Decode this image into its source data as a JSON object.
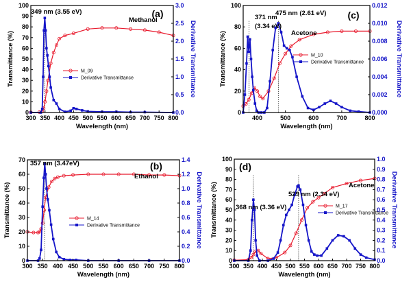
{
  "chart_data": [
    {
      "type": "line",
      "panel_label": "(a)",
      "solvent": "Methanol",
      "peak_annotation": "349 nm (3.55 eV)",
      "xlabel": "Wavelength (nm)",
      "ylabel_left": "Transmittance (%)",
      "ylabel_right": "Derivative Transmittance",
      "xlim": [
        300,
        800
      ],
      "ylim_left": [
        0,
        100
      ],
      "ylim_right": [
        0,
        3.0
      ],
      "xticks": [
        300,
        350,
        400,
        450,
        500,
        550,
        600,
        650,
        700,
        750,
        800
      ],
      "yticks_left": [
        0,
        10,
        20,
        30,
        40,
        50,
        60,
        70,
        80,
        90,
        100
      ],
      "yticks_right": [
        0.0,
        0.5,
        1.0,
        1.5,
        2.0,
        2.5,
        3.0
      ],
      "yticks_right_labels": [
        "0.0",
        "0.5",
        "1.0",
        "1.5",
        "2.0",
        "2.5",
        "3.0"
      ],
      "marker_lines": [
        349
      ],
      "legend_position": "middle-left",
      "series": [
        {
          "name": "M_09",
          "axis": "left",
          "marker": "circle",
          "color": "#e8192c",
          "x": [
            300,
            330,
            340,
            345,
            350,
            355,
            360,
            370,
            380,
            390,
            400,
            420,
            450,
            500,
            550,
            600,
            650,
            700,
            750,
            800
          ],
          "y": [
            0.2,
            0.3,
            1,
            4,
            10,
            20,
            30,
            46,
            56,
            63,
            69,
            72,
            74,
            78,
            79,
            79,
            78,
            77,
            75,
            72
          ]
        },
        {
          "name": "Derivative Transmittance",
          "axis": "right",
          "marker": "square",
          "color": "#1515c8",
          "x": [
            300,
            335,
            340,
            343,
            346,
            349,
            352,
            355,
            358,
            362,
            366,
            370,
            380,
            390,
            400,
            420,
            440,
            450,
            460,
            480,
            500,
            550,
            600,
            650,
            700,
            800
          ],
          "y": [
            0,
            0,
            0.1,
            1.0,
            2.3,
            2.65,
            2.3,
            1.8,
            1.6,
            1.3,
            1.0,
            0.7,
            0.35,
            0.25,
            0.1,
            0.02,
            0.05,
            0.12,
            0.1,
            0.06,
            0.03,
            0.02,
            0.02,
            0.01,
            0.01,
            0.0
          ]
        }
      ]
    },
    {
      "type": "line",
      "panel_label": "(c)",
      "solvent": "Acetone",
      "peak_annotations": [
        "371 nm\n(3.34 eV)",
        "475 nm (2.61 eV)"
      ],
      "xlabel": "Wavelength (nm)",
      "ylabel_left": "Transmittance (%)",
      "ylabel_right": "Derivative Transmittance",
      "xlim": [
        350,
        800
      ],
      "ylim_left": [
        0,
        100
      ],
      "ylim_right": [
        0,
        0.012
      ],
      "xticks": [
        400,
        500,
        600,
        700,
        800
      ],
      "yticks_left": [
        0,
        20,
        40,
        60,
        80,
        100
      ],
      "yticks_right": [
        0.0,
        0.002,
        0.004,
        0.006,
        0.008,
        0.01,
        0.012
      ],
      "yticks_right_labels": [
        "0.000",
        "0.002",
        "0.004",
        "0.006",
        "0.008",
        "0.010",
        "0.012"
      ],
      "marker_lines": [
        371,
        475
      ],
      "legend_position": "middle-right",
      "series": [
        {
          "name": "M_10",
          "axis": "left",
          "marker": "circle",
          "color": "#e8192c",
          "x": [
            350,
            360,
            370,
            380,
            390,
            400,
            410,
            420,
            440,
            460,
            480,
            500,
            520,
            550,
            600,
            650,
            700,
            750,
            800
          ],
          "y": [
            6,
            8,
            12,
            18,
            23,
            20,
            15,
            13,
            20,
            32,
            46,
            55,
            62,
            68,
            73,
            75,
            76,
            76,
            76
          ]
        },
        {
          "name": "Derivative Transmittance",
          "axis": "right",
          "marker": "square",
          "color": "#1515c8",
          "x": [
            350,
            356,
            362,
            366,
            370,
            374,
            378,
            382,
            386,
            392,
            398,
            405,
            415,
            425,
            435,
            445,
            455,
            465,
            475,
            485,
            495,
            505,
            515,
            525,
            540,
            560,
            580,
            600,
            620,
            640,
            660,
            680,
            700,
            730,
            760,
            800
          ],
          "y": [
            0,
            0.002,
            0.0055,
            0.0085,
            0.0068,
            0.0082,
            0.006,
            0.004,
            0.0025,
            0.001,
            0.0002,
            0,
            0,
            0,
            0.0005,
            0.0035,
            0.007,
            0.0095,
            0.01,
            0.009,
            0.0075,
            0.0072,
            0.007,
            0.0062,
            0.004,
            0.0018,
            0.0005,
            0.0003,
            0.0006,
            0.001,
            0.0013,
            0.001,
            0.0006,
            0.0002,
            0.0001,
            0
          ]
        }
      ]
    },
    {
      "type": "line",
      "panel_label": "(b)",
      "solvent": "Ethanol",
      "peak_annotation": "357 nm (3.47eV)",
      "xlabel": "Wavelength (nm)",
      "ylabel_left": "Transmittance (%)",
      "ylabel_right": "Derivative Transmittance",
      "xlim": [
        300,
        800
      ],
      "ylim_left": [
        0,
        70
      ],
      "ylim_right": [
        0,
        1.4
      ],
      "xticks": [
        300,
        350,
        400,
        450,
        500,
        550,
        600,
        650,
        700,
        750,
        800
      ],
      "yticks_left": [
        0,
        10,
        20,
        30,
        40,
        50,
        60,
        70
      ],
      "yticks_right": [
        0.0,
        0.2,
        0.4,
        0.6,
        0.8,
        1.0,
        1.2,
        1.4
      ],
      "yticks_right_labels": [
        "0.0",
        "0.2",
        "0.4",
        "0.6",
        "0.8",
        "1.0",
        "1.2",
        "1.4"
      ],
      "marker_lines": [
        357
      ],
      "legend_position": "bottom-center",
      "series": [
        {
          "name": "M_14",
          "axis": "left",
          "marker": "circle",
          "color": "#e8192c",
          "x": [
            300,
            320,
            335,
            340,
            345,
            350,
            355,
            360,
            370,
            380,
            390,
            400,
            420,
            450,
            500,
            550,
            600,
            650,
            700,
            750,
            800
          ],
          "y": [
            20,
            19.5,
            19.5,
            20,
            22,
            26,
            35,
            44,
            51,
            55,
            57,
            58,
            59,
            59.5,
            60,
            60,
            60,
            60,
            59.5,
            59.5,
            59
          ]
        },
        {
          "name": "Derivative Transmittance",
          "axis": "right",
          "marker": "square",
          "color": "#1515c8",
          "x": [
            300,
            335,
            340,
            345,
            350,
            354,
            357,
            360,
            363,
            367,
            372,
            378,
            385,
            395,
            405,
            420,
            440,
            460,
            500,
            600,
            700,
            800
          ],
          "y": [
            0,
            0,
            0.03,
            0.15,
            0.75,
            1.15,
            1.35,
            1.2,
            1.0,
            0.85,
            0.7,
            0.5,
            0.3,
            0.12,
            0.05,
            0.02,
            0.01,
            0.01,
            0,
            0,
            0,
            0
          ]
        }
      ]
    },
    {
      "type": "line",
      "panel_label": "(d)",
      "solvent": "Acetone",
      "peak_annotations": [
        "368 nm (3.36 eV)",
        "529 nm (2.34 eV)"
      ],
      "xlabel": "Wavelength (nm)",
      "ylabel_left": "Transmittance (%)",
      "ylabel_right": "Derivative Transmittance",
      "xlim": [
        300,
        800
      ],
      "ylim_left": [
        0,
        100
      ],
      "ylim_right": [
        0,
        1.0
      ],
      "xticks": [
        300,
        350,
        400,
        450,
        500,
        550,
        600,
        650,
        700,
        750,
        800
      ],
      "yticks_left": [
        0,
        10,
        20,
        30,
        40,
        50,
        60,
        70,
        80,
        90,
        100
      ],
      "yticks_right": [
        0.0,
        0.1,
        0.2,
        0.3,
        0.4,
        0.5,
        0.6,
        0.7,
        0.8,
        0.9,
        1.0
      ],
      "yticks_right_labels": [
        "0.0",
        "0.1",
        "0.2",
        "0.3",
        "0.4",
        "0.5",
        "0.6",
        "0.7",
        "0.8",
        "0.9",
        "1.0"
      ],
      "marker_lines": [
        368,
        529
      ],
      "legend_position": "middle-right",
      "series": [
        {
          "name": "M_17",
          "axis": "left",
          "marker": "circle",
          "color": "#e8192c",
          "x": [
            300,
            350,
            360,
            368,
            375,
            385,
            395,
            420,
            450,
            480,
            500,
            520,
            540,
            560,
            580,
            600,
            620,
            650,
            700,
            750,
            800
          ],
          "y": [
            0.5,
            1,
            3,
            6,
            9,
            10,
            7,
            2,
            3,
            8,
            15,
            27,
            40,
            52,
            58,
            62,
            66,
            72,
            76,
            79,
            81
          ]
        },
        {
          "name": "Derivative Transmittance",
          "axis": "right",
          "marker": "square",
          "color": "#1515c8",
          "x": [
            300,
            350,
            358,
            363,
            368,
            372,
            376,
            381,
            390,
            420,
            440,
            455,
            465,
            475,
            485,
            495,
            505,
            515,
            525,
            529,
            535,
            545,
            555,
            565,
            575,
            585,
            595,
            610,
            630,
            650,
            670,
            690,
            710,
            730,
            750,
            770,
            800
          ],
          "y": [
            0,
            0,
            0.1,
            0.4,
            0.6,
            0.5,
            0.2,
            0.05,
            0,
            0,
            0.02,
            0.08,
            0.2,
            0.35,
            0.45,
            0.5,
            0.55,
            0.65,
            0.73,
            0.74,
            0.7,
            0.55,
            0.35,
            0.2,
            0.09,
            0.06,
            0.05,
            0.05,
            0.12,
            0.2,
            0.25,
            0.24,
            0.2,
            0.12,
            0.06,
            0.03,
            0.01
          ]
        }
      ]
    }
  ]
}
